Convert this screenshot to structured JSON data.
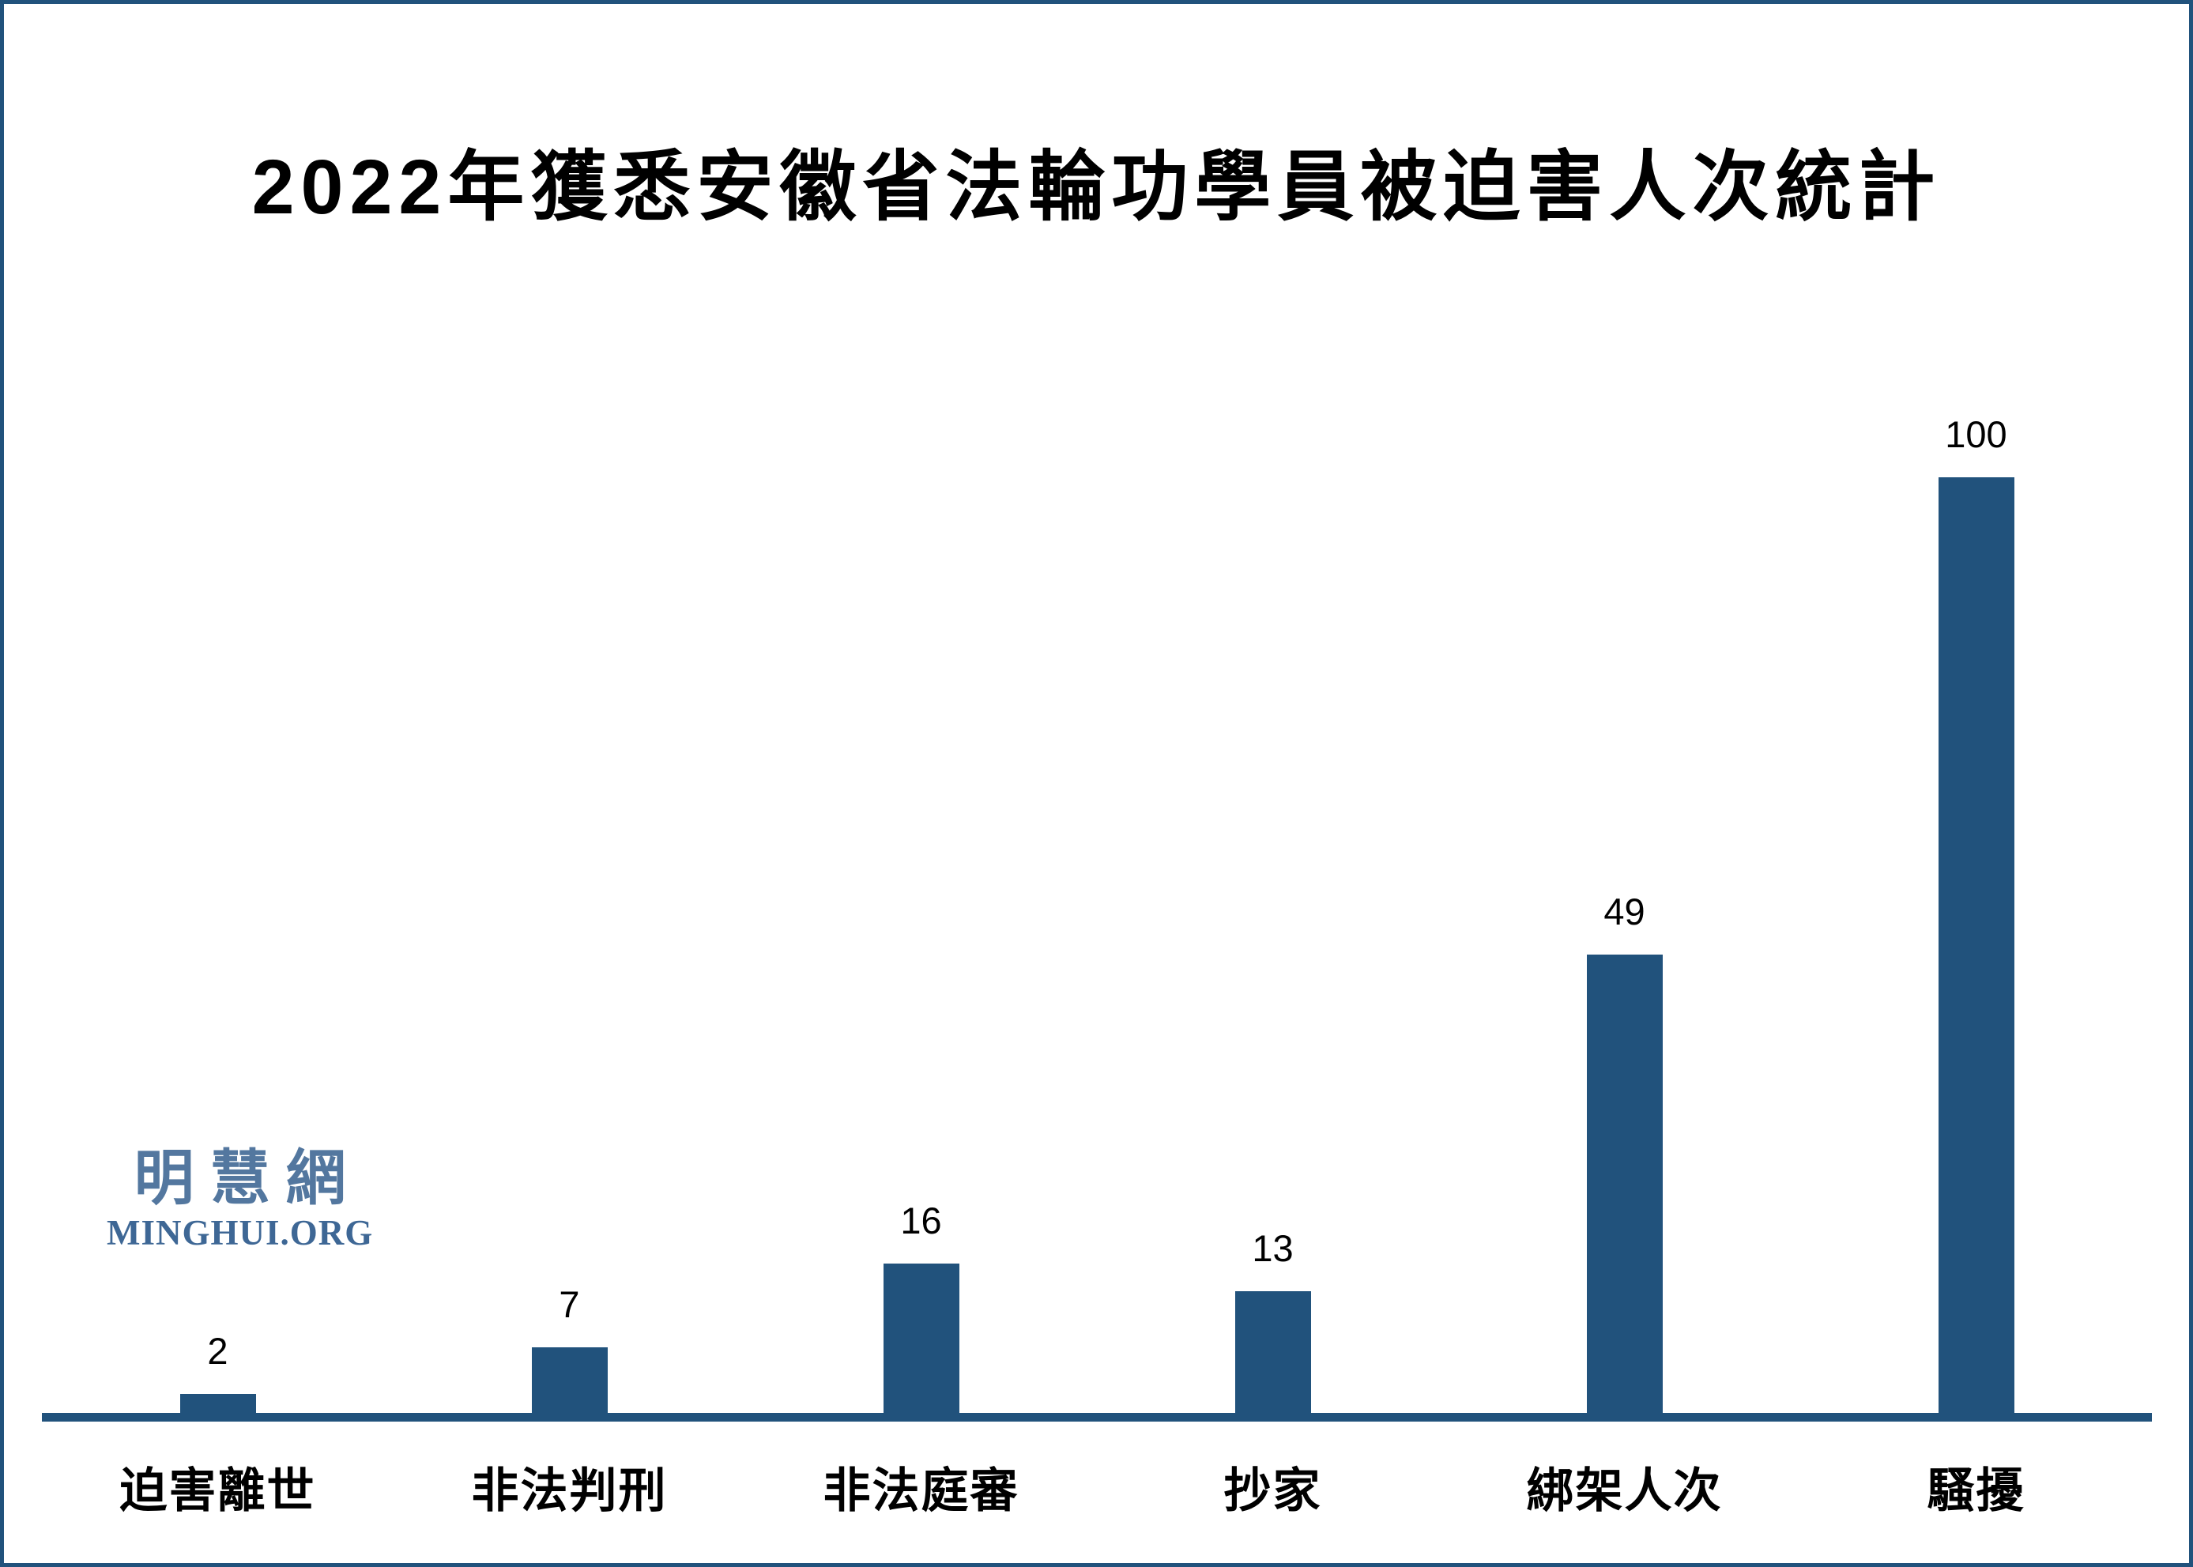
{
  "title": "2022年獲悉安徽省法輪功學員被迫害人次統計",
  "logo": {
    "cjk": "明慧網",
    "latin": "MINGHUI.ORG"
  },
  "colors": {
    "bar": "#21527C",
    "frame": "#21527C",
    "axis": "#21527C",
    "logo_cjk": "#53779F",
    "logo_latin": "#3E6795",
    "label": "#000000",
    "background": "#FFFFFF"
  },
  "chart_data": {
    "type": "bar",
    "title": "2022年獲悉安徽省法輪功學員被迫害人次統計",
    "categories": [
      "迫害離世",
      "非法判刑",
      "非法庭審",
      "抄家",
      "綁架人次",
      "騷擾"
    ],
    "values": [
      2,
      7,
      16,
      13,
      49,
      100
    ],
    "data_labels": [
      2,
      7,
      16,
      13,
      49,
      100
    ],
    "xlabel": "",
    "ylabel": "",
    "ylim": [
      0,
      100
    ],
    "grid": false,
    "legend": false,
    "y_axis_visible": false,
    "x_axis_visible": true,
    "bar_color": "#21527C"
  }
}
